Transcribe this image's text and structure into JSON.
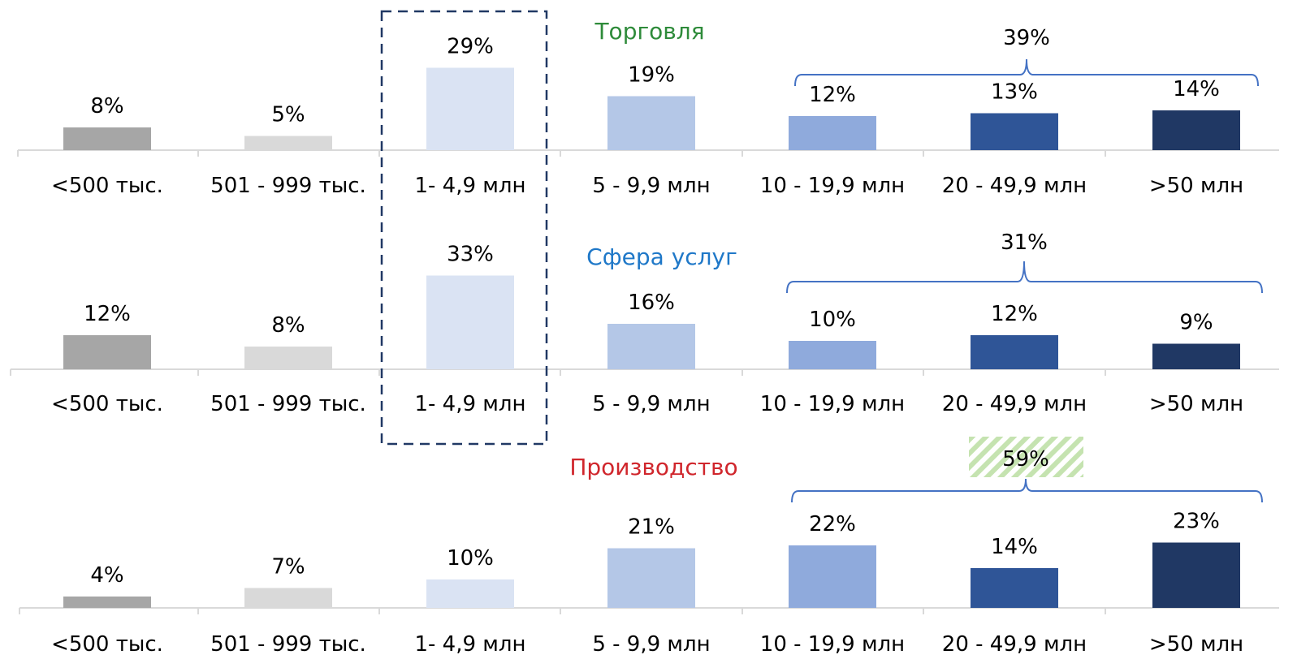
{
  "chart_data": [
    {
      "type": "bar",
      "title": "Торговля",
      "title_color": "#2e8b3a",
      "categories": [
        "<500 тыс.",
        "501 - 999 тыс.",
        "1- 4,9 млн",
        "5 - 9,9 млн",
        "10 - 19,9 млн",
        "20 - 49,9 млн",
        ">50 млн"
      ],
      "values": [
        8,
        5,
        29,
        19,
        12,
        13,
        14
      ],
      "value_labels": [
        "8%",
        "5%",
        "29%",
        "19%",
        "12%",
        "13%",
        "14%"
      ],
      "bracket_label": "39%",
      "ylim": [
        0,
        35
      ],
      "grid": false
    },
    {
      "type": "bar",
      "title": "Сфера услуг",
      "title_color": "#1f78c8",
      "categories": [
        "<500 тыс.",
        "501 - 999 тыс.",
        "1- 4,9 млн",
        "5 - 9,9 млн",
        "10 - 19,9 млн",
        "20 - 49,9 млн",
        ">50 млн"
      ],
      "values": [
        12,
        8,
        33,
        16,
        10,
        12,
        9
      ],
      "value_labels": [
        "12%",
        "8%",
        "33%",
        "16%",
        "10%",
        "12%",
        "9%"
      ],
      "bracket_label": "31%",
      "ylim": [
        0,
        35
      ],
      "grid": false
    },
    {
      "type": "bar",
      "title": "Производство",
      "title_color": "#d0262c",
      "categories": [
        "<500 тыс.",
        "501 - 999 тыс.",
        "1- 4,9 млн",
        "5 - 9,9 млн",
        "10 - 19,9 млн",
        "20 - 49,9 млн",
        ">50 млн"
      ],
      "values": [
        4,
        7,
        10,
        21,
        22,
        14,
        23
      ],
      "value_labels": [
        "4%",
        "7%",
        "10%",
        "21%",
        "22%",
        "14%",
        "23%"
      ],
      "bracket_label": "59%",
      "ylim": [
        0,
        35
      ],
      "grid": false
    }
  ],
  "colors": {
    "bar_colors": [
      "#a6a6a6",
      "#d9d9d9",
      "#dae3f3",
      "#b4c7e7",
      "#8faadc",
      "#2f5597",
      "#203864"
    ],
    "axis": "#d9d9d9",
    "bracket": "#4472c4",
    "highlight_box": "#203864",
    "hatch": "#a9d18e",
    "text": "#000000"
  }
}
